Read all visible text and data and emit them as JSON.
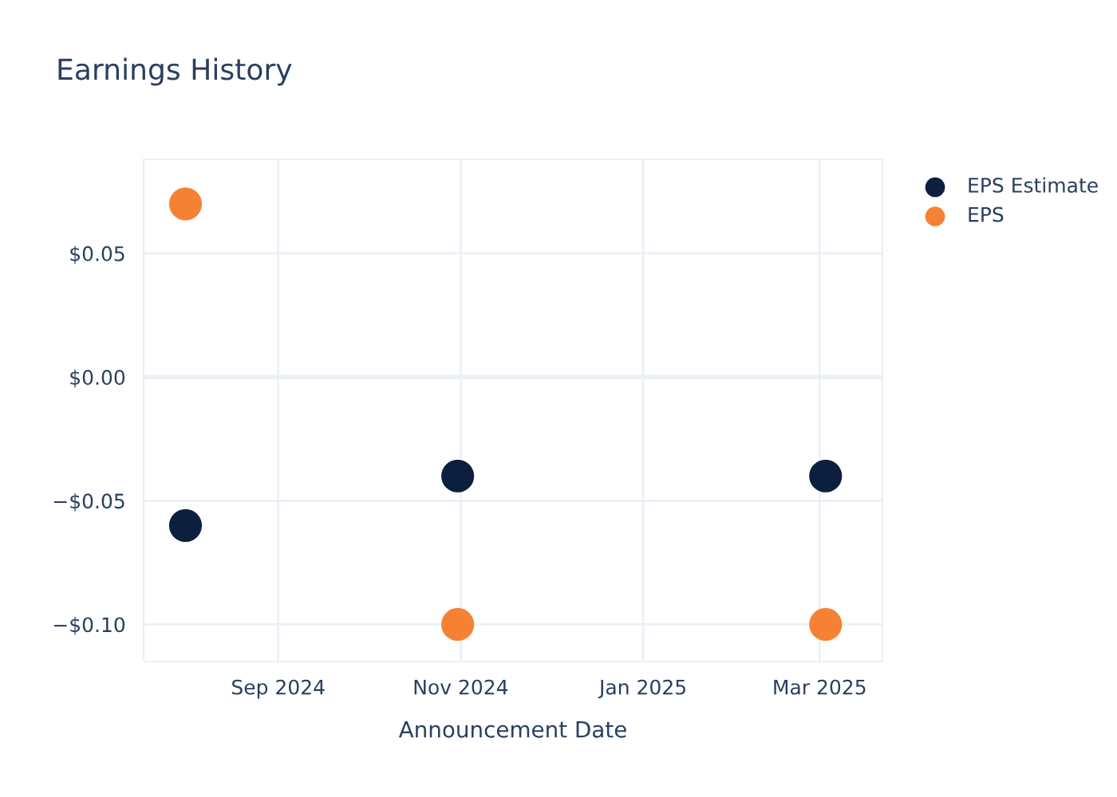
{
  "chart_data": {
    "type": "scatter",
    "title": "Earnings History",
    "xlabel": "Announcement Date",
    "x": [
      "2024-08-01",
      "2024-10-31",
      "2025-03-03"
    ],
    "series": [
      {
        "name": "EPS Estimate",
        "color": "#0d1f3f",
        "values": [
          -0.06,
          -0.04,
          -0.04
        ]
      },
      {
        "name": "EPS",
        "color": "#f58234",
        "values": [
          0.07,
          -0.1,
          -0.1
        ]
      }
    ],
    "xlim": [
      "2024-07-18",
      "2025-03-22"
    ],
    "xticks": [
      {
        "value": "2024-09-01",
        "label": "Sep 2024"
      },
      {
        "value": "2024-11-01",
        "label": "Nov 2024"
      },
      {
        "value": "2025-01-01",
        "label": "Jan 2025"
      },
      {
        "value": "2025-03-01",
        "label": "Mar 2025"
      }
    ],
    "ylim": [
      -0.115,
      0.088
    ],
    "yticks": [
      {
        "value": -0.1,
        "label": "−$0.10"
      },
      {
        "value": -0.05,
        "label": "−$0.05"
      },
      {
        "value": 0,
        "label": "$0.00"
      },
      {
        "value": 0.05,
        "label": "$0.05"
      }
    ],
    "grid": true,
    "legend": "top right",
    "marker": "circle"
  }
}
